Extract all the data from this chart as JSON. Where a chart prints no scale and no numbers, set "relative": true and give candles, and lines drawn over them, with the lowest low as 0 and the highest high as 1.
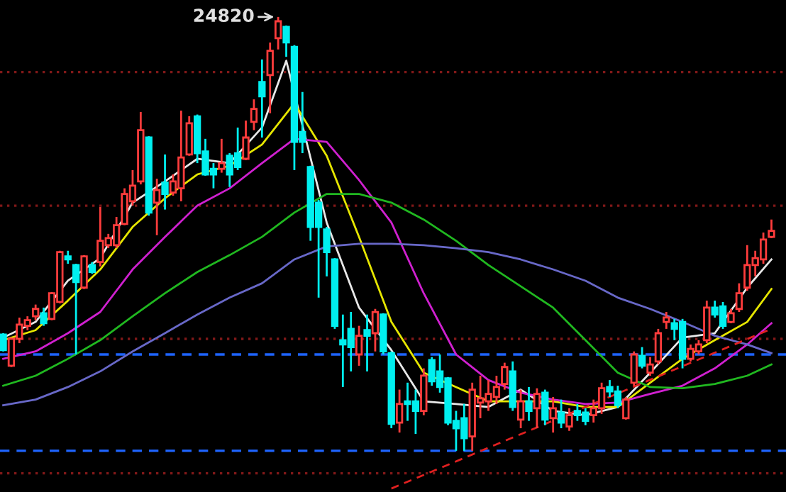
{
  "chart_data": {
    "type": "candlestick",
    "relative": true,
    "categories": [
      null,
      null,
      null,
      null,
      null,
      null,
      null,
      null,
      null,
      null,
      null,
      null,
      null,
      null,
      null,
      null,
      null,
      null,
      null,
      null,
      null,
      null,
      null,
      null,
      null,
      null,
      null,
      null,
      null,
      null,
      null,
      null,
      null,
      null,
      null,
      null,
      null,
      null,
      null,
      null,
      null,
      null,
      null,
      null,
      null,
      null,
      null,
      null,
      null,
      null,
      null,
      null,
      null,
      null,
      null,
      null,
      null,
      null,
      null,
      null,
      null,
      null,
      null,
      null,
      null,
      null,
      null,
      null,
      null,
      null,
      null,
      null,
      null,
      null,
      null,
      null,
      null,
      null,
      null,
      null,
      null,
      null,
      null,
      null,
      null,
      null,
      null,
      null,
      null,
      null,
      null,
      null,
      null,
      null,
      null,
      null
    ],
    "colors": [
      "#00f0f0",
      "#ff3c3c",
      "#ff3c3c",
      "#ff3c3c",
      "#ff3c3c",
      "#00f0f0",
      "#ff3c3c",
      "#ff3c3c",
      "#00f0f0",
      "#00f0f0",
      "#ff3c3c",
      "#00f0f0",
      "#ff3c3c",
      "#ff3c3c",
      "#ff3c3c",
      "#ff3c3c",
      "#ff3c3c",
      "#ff3c3c",
      "#00f0f0",
      "#ff3c3c",
      "#00f0f0",
      "#ff3c3c",
      "#ff3c3c",
      "#ff3c3c",
      "#00f0f0",
      "#00f0f0",
      "#00f0f0",
      "#ff3c3c",
      "#00f0f0",
      "#00f0f0",
      "#ff3c3c",
      "#ff3c3c",
      "#00f0f0",
      "#ff3c3c",
      "#ff3c3c",
      "#00f0f0",
      "#00f0f0",
      "#00f0f0",
      "#00f0f0",
      "#00f0f0",
      "#00f0f0",
      "#00f0f0",
      "#00f0f0",
      "#00f0f0",
      "#ff3c3c",
      "#00f0f0",
      "#ff3c3c",
      "#00f0f0",
      "#00f0f0",
      "#ff3c3c",
      "#00f0f0",
      "#00f0f0",
      "#ff3c3c",
      "#00f0f0",
      "#00f0f0",
      "#00f0f0",
      "#00f0f0",
      "#00f0f0",
      "#ff3c3c",
      "#ff3c3c",
      "#ff3c3c",
      "#ff3c3c",
      "#ff3c3c",
      "#00f0f0",
      "#ff3c3c",
      "#00f0f0",
      "#ff3c3c",
      "#00f0f0",
      "#ff3c3c",
      "#00f0f0",
      "#ff3c3c",
      "#00f0f0",
      "#00f0f0",
      "#ff3c3c",
      "#ff3c3c",
      "#00f0f0",
      "#00f0f0",
      "#ff3c3c",
      "#ff3c3c",
      "#00f0f0",
      "#ff3c3c",
      "#ff3c3c",
      "#ff3c3c",
      "#00f0f0",
      "#00f0f0",
      "#ff3c3c",
      "#ff3c3c",
      "#ff3c3c",
      "#00f0f0",
      "#00f0f0",
      "#ff3c3c",
      "#ff3c3c",
      "#ff3c3c",
      "#ff3c3c",
      "#ff3c3c",
      "#ff3c3c"
    ],
    "ohlc": [
      [
        0.268,
        0.271,
        0.229,
        0.232
      ],
      [
        0.196,
        0.261,
        0.193,
        0.258
      ],
      [
        0.258,
        0.307,
        0.248,
        0.291
      ],
      [
        0.288,
        0.31,
        0.278,
        0.301
      ],
      [
        0.31,
        0.337,
        0.301,
        0.327
      ],
      [
        0.317,
        0.33,
        0.288,
        0.294
      ],
      [
        0.304,
        0.366,
        0.301,
        0.363
      ],
      [
        0.343,
        0.461,
        0.34,
        0.458
      ],
      [
        0.448,
        0.461,
        0.431,
        0.441
      ],
      [
        0.428,
        0.431,
        0.222,
        0.389
      ],
      [
        0.376,
        0.451,
        0.373,
        0.448
      ],
      [
        0.428,
        0.435,
        0.408,
        0.412
      ],
      [
        0.435,
        0.562,
        0.425,
        0.484
      ],
      [
        0.474,
        0.5,
        0.467,
        0.49
      ],
      [
        0.474,
        0.539,
        0.467,
        0.52
      ],
      [
        0.523,
        0.605,
        0.52,
        0.592
      ],
      [
        0.575,
        0.647,
        0.565,
        0.611
      ],
      [
        0.621,
        0.781,
        0.614,
        0.739
      ],
      [
        0.722,
        0.725,
        0.542,
        0.549
      ],
      [
        0.572,
        0.627,
        0.497,
        0.601
      ],
      [
        0.618,
        0.683,
        0.556,
        0.592
      ],
      [
        0.595,
        0.637,
        0.588,
        0.621
      ],
      [
        0.605,
        0.784,
        0.575,
        0.676
      ],
      [
        0.683,
        0.771,
        0.68,
        0.755
      ],
      [
        0.771,
        0.775,
        0.663,
        0.686
      ],
      [
        0.69,
        0.719,
        0.634,
        0.637
      ],
      [
        0.65,
        0.663,
        0.605,
        0.637
      ],
      [
        0.65,
        0.719,
        0.641,
        0.663
      ],
      [
        0.68,
        0.686,
        0.608,
        0.637
      ],
      [
        0.686,
        0.745,
        0.647,
        0.654
      ],
      [
        0.673,
        0.761,
        0.67,
        0.722
      ],
      [
        0.758,
        0.81,
        0.739,
        0.788
      ],
      [
        0.85,
        0.902,
        0.722,
        0.817
      ],
      [
        0.866,
        0.941,
        0.778,
        0.922
      ],
      [
        0.951,
        1,
        0.925,
        0.99
      ],
      [
        0.977,
        0.98,
        0.908,
        0.941
      ],
      [
        0.931,
        0.935,
        0.647,
        0.712
      ],
      [
        0.735,
        0.827,
        0.686,
        0.712
      ],
      [
        0.654,
        0.657,
        0.484,
        0.516
      ],
      [
        0.572,
        0.578,
        0.353,
        0.516
      ],
      [
        0.51,
        0.516,
        0.402,
        0.458
      ],
      [
        0.441,
        0.444,
        0.281,
        0.288
      ],
      [
        0.255,
        0.314,
        0.147,
        0.245
      ],
      [
        0.281,
        0.32,
        0.183,
        0.239
      ],
      [
        0.222,
        0.288,
        0.196,
        0.265
      ],
      [
        0.278,
        0.314,
        0.183,
        0.265
      ],
      [
        0.271,
        0.327,
        0.229,
        0.32
      ],
      [
        0.314,
        0.317,
        0.222,
        0.229
      ],
      [
        0.225,
        0.229,
        0.052,
        0.062
      ],
      [
        0.065,
        0.141,
        0.042,
        0.108
      ],
      [
        0.114,
        0.157,
        0.069,
        0.108
      ],
      [
        0.114,
        0.141,
        0.039,
        0.092
      ],
      [
        0.092,
        0.19,
        0.082,
        0.173
      ],
      [
        0.209,
        0.216,
        0.15,
        0.16
      ],
      [
        0.183,
        0.222,
        0.134,
        0.147
      ],
      [
        0.167,
        0.17,
        0.059,
        0.065
      ],
      [
        0.069,
        0.092,
        0,
        0.052
      ],
      [
        0.075,
        0.108,
        0,
        0.029
      ],
      [
        0.033,
        0.157,
        0,
        0.141
      ],
      [
        0.111,
        0.173,
        0.075,
        0.121
      ],
      [
        0.114,
        0.163,
        0.092,
        0.131
      ],
      [
        0.124,
        0.173,
        0.108,
        0.147
      ],
      [
        0.154,
        0.203,
        0.141,
        0.193
      ],
      [
        0.183,
        0.206,
        0.092,
        0.101
      ],
      [
        0.072,
        0.141,
        0.052,
        0.114
      ],
      [
        0.114,
        0.147,
        0.069,
        0.092
      ],
      [
        0.098,
        0.144,
        0.052,
        0.131
      ],
      [
        0.134,
        0.141,
        0.059,
        0.072
      ],
      [
        0.075,
        0.124,
        0.042,
        0.098
      ],
      [
        0.088,
        0.118,
        0.052,
        0.065
      ],
      [
        0.056,
        0.098,
        0.046,
        0.082
      ],
      [
        0.092,
        0.108,
        0.069,
        0.082
      ],
      [
        0.088,
        0.098,
        0.059,
        0.069
      ],
      [
        0.082,
        0.118,
        0.065,
        0.098
      ],
      [
        0.098,
        0.157,
        0.085,
        0.144
      ],
      [
        0.147,
        0.163,
        0.124,
        0.137
      ],
      [
        0.137,
        0.15,
        0.098,
        0.105
      ],
      [
        0.075,
        0.124,
        0.072,
        0.118
      ],
      [
        0.157,
        0.229,
        0.15,
        0.222
      ],
      [
        0.219,
        0.239,
        0.19,
        0.196
      ],
      [
        0.18,
        0.216,
        0.173,
        0.199
      ],
      [
        0.206,
        0.281,
        0.199,
        0.271
      ],
      [
        0.297,
        0.32,
        0.281,
        0.307
      ],
      [
        0.294,
        0.304,
        0.255,
        0.281
      ],
      [
        0.297,
        0.304,
        0.19,
        0.212
      ],
      [
        0.212,
        0.245,
        0.206,
        0.235
      ],
      [
        0.229,
        0.255,
        0.222,
        0.245
      ],
      [
        0.255,
        0.346,
        0.248,
        0.33
      ],
      [
        0.33,
        0.346,
        0.307,
        0.314
      ],
      [
        0.333,
        0.343,
        0.281,
        0.288
      ],
      [
        0.297,
        0.327,
        0.294,
        0.317
      ],
      [
        0.327,
        0.386,
        0.32,
        0.363
      ],
      [
        0.376,
        0.474,
        0.369,
        0.428
      ],
      [
        0.428,
        0.461,
        0.402,
        0.444
      ],
      [
        0.441,
        0.503,
        0.431,
        0.487
      ],
      [
        0.493,
        0.533,
        0.49,
        0.507
      ]
    ],
    "series": [
      {
        "type": "line",
        "color": "#e8e8e8",
        "values": [
          0.261,
          null,
          null,
          null,
          0.297,
          null,
          null,
          null,
          0.392,
          null,
          null,
          null,
          0.444,
          null,
          null,
          null,
          0.572,
          null,
          null,
          null,
          0.621,
          null,
          null,
          null,
          0.673,
          null,
          null,
          null,
          0.663,
          null,
          null,
          null,
          0.745,
          null,
          null,
          0.899,
          null,
          null,
          null,
          null,
          0.526,
          null,
          null,
          null,
          0.33,
          null,
          null,
          null,
          0.232,
          null,
          null,
          null,
          0.114,
          null,
          null,
          null,
          0.108,
          null,
          null,
          null,
          0.101,
          null,
          null,
          null,
          0.141,
          null,
          null,
          null,
          0.092,
          null,
          null,
          null,
          0.082,
          null,
          null,
          null,
          0.101,
          null,
          null,
          null,
          0.18,
          null,
          null,
          null,
          0.261,
          null,
          null,
          null,
          0.271,
          null,
          null,
          null,
          0.376,
          null,
          null,
          0.441
        ]
      },
      {
        "type": "line",
        "color": "#e6e600",
        "values": [
          0.255,
          null,
          null,
          null,
          0.278,
          null,
          null,
          null,
          0.346,
          null,
          null,
          null,
          0.418,
          null,
          null,
          null,
          0.516,
          null,
          null,
          null,
          0.582,
          null,
          null,
          null,
          0.637,
          null,
          null,
          null,
          0.657,
          null,
          null,
          null,
          0.706,
          null,
          null,
          null,
          0.801,
          null,
          null,
          null,
          0.68,
          null,
          null,
          null,
          0.493,
          null,
          null,
          null,
          0.297,
          null,
          null,
          null,
          0.18,
          null,
          null,
          null,
          0.147,
          null,
          null,
          null,
          0.114,
          null,
          null,
          null,
          0.114,
          null,
          null,
          null,
          0.114,
          null,
          null,
          null,
          0.101,
          null,
          null,
          null,
          0.101,
          null,
          null,
          null,
          0.157,
          null,
          null,
          null,
          0.212,
          null,
          null,
          null,
          0.255,
          null,
          null,
          null,
          0.297,
          null,
          null,
          0.373
        ]
      },
      {
        "type": "line",
        "color": "#d020d0",
        "values": [
          0.212,
          null,
          null,
          null,
          0.229,
          null,
          null,
          null,
          0.271,
          null,
          null,
          null,
          0.32,
          null,
          null,
          null,
          0.418,
          null,
          null,
          null,
          0.493,
          null,
          null,
          null,
          0.565,
          null,
          null,
          null,
          0.605,
          null,
          null,
          null,
          0.663,
          null,
          null,
          null,
          0.719,
          null,
          null,
          null,
          0.712,
          null,
          null,
          null,
          0.624,
          null,
          null,
          null,
          0.526,
          null,
          null,
          null,
          0.363,
          null,
          null,
          null,
          0.222,
          null,
          null,
          null,
          0.163,
          null,
          null,
          null,
          0.134,
          null,
          null,
          null,
          0.118,
          null,
          null,
          null,
          0.108,
          null,
          null,
          null,
          0.111,
          null,
          null,
          null,
          0.131,
          null,
          null,
          null,
          0.15,
          null,
          null,
          null,
          0.19,
          null,
          null,
          null,
          0.245,
          null,
          null,
          0.294
        ]
      },
      {
        "type": "line",
        "color": "#20b820",
        "values": [
          0.15,
          null,
          null,
          null,
          0.173,
          null,
          null,
          null,
          0.212,
          null,
          null,
          null,
          0.255,
          null,
          null,
          null,
          0.31,
          null,
          null,
          null,
          0.363,
          null,
          null,
          null,
          0.412,
          null,
          null,
          null,
          0.451,
          null,
          null,
          null,
          0.493,
          null,
          null,
          null,
          0.549,
          null,
          null,
          null,
          0.592,
          null,
          null,
          null,
          0.592,
          null,
          null,
          null,
          0.572,
          null,
          null,
          null,
          0.533,
          null,
          null,
          null,
          0.484,
          null,
          null,
          null,
          0.428,
          null,
          null,
          null,
          0.379,
          null,
          null,
          null,
          0.33,
          null,
          null,
          null,
          0.255,
          null,
          null,
          null,
          0.18,
          null,
          null,
          null,
          0.147,
          null,
          null,
          null,
          0.144,
          null,
          null,
          null,
          0.154,
          null,
          null,
          null,
          0.173,
          null,
          null,
          0.199
        ]
      },
      {
        "type": "line",
        "color": "#6868c8",
        "values": [
          0.105,
          null,
          null,
          null,
          0.118,
          null,
          null,
          null,
          0.147,
          null,
          null,
          null,
          0.183,
          null,
          null,
          null,
          0.229,
          null,
          null,
          null,
          0.271,
          null,
          null,
          null,
          0.314,
          null,
          null,
          null,
          0.353,
          null,
          null,
          null,
          0.386,
          null,
          null,
          null,
          0.441,
          null,
          null,
          null,
          0.471,
          null,
          null,
          null,
          0.477,
          null,
          null,
          null,
          0.477,
          null,
          null,
          null,
          0.474,
          null,
          null,
          null,
          0.467,
          null,
          null,
          null,
          0.458,
          null,
          null,
          null,
          0.441,
          null,
          null,
          null,
          0.418,
          null,
          null,
          null,
          0.392,
          null,
          null,
          null,
          0.353,
          null,
          null,
          null,
          0.327,
          null,
          null,
          null,
          0.297,
          null,
          null,
          null,
          0.265,
          null,
          null,
          null,
          0.245,
          null,
          null,
          0.225
        ]
      },
      {
        "type": "line",
        "color": "#e02020",
        "line_style": "dashed",
        "values": [
          null,
          null,
          null,
          null,
          null,
          null,
          null,
          null,
          null,
          null,
          null,
          null,
          null,
          null,
          null,
          null,
          null,
          null,
          null,
          null,
          null,
          null,
          null,
          null,
          null,
          null,
          null,
          null,
          null,
          null,
          null,
          null,
          null,
          null,
          null,
          null,
          null,
          null,
          null,
          null,
          null,
          null,
          null,
          null,
          null,
          null,
          null,
          null,
          -0.087,
          null,
          null,
          null,
          null,
          null,
          null,
          null,
          null,
          null,
          null,
          null,
          null,
          null,
          null,
          null,
          null,
          null,
          null,
          null,
          null,
          null,
          null,
          null,
          null,
          null,
          null,
          null,
          null,
          null,
          null,
          null,
          null,
          null,
          null,
          null,
          null,
          null,
          null,
          null,
          null,
          null,
          null,
          null,
          null,
          null,
          null,
          0.281
        ]
      }
    ],
    "ref_lines": [
      {
        "axis": "y",
        "value": 0.222,
        "color": "#1e64ff",
        "line_style": "dashed"
      },
      {
        "axis": "y",
        "value": 0,
        "color": "#1e64ff",
        "line_style": "dashed"
      },
      {
        "axis": "y",
        "value": 0.873,
        "color": "#801818",
        "line_style": "dotted"
      },
      {
        "axis": "y",
        "value": 0.565,
        "color": "#801818",
        "line_style": "dotted"
      },
      {
        "axis": "y",
        "value": 0.258,
        "color": "#801818",
        "line_style": "dotted"
      },
      {
        "axis": "y",
        "value": -0.052,
        "color": "#801818",
        "line_style": "dotted"
      }
    ],
    "annotations": [
      "24820"
    ]
  }
}
